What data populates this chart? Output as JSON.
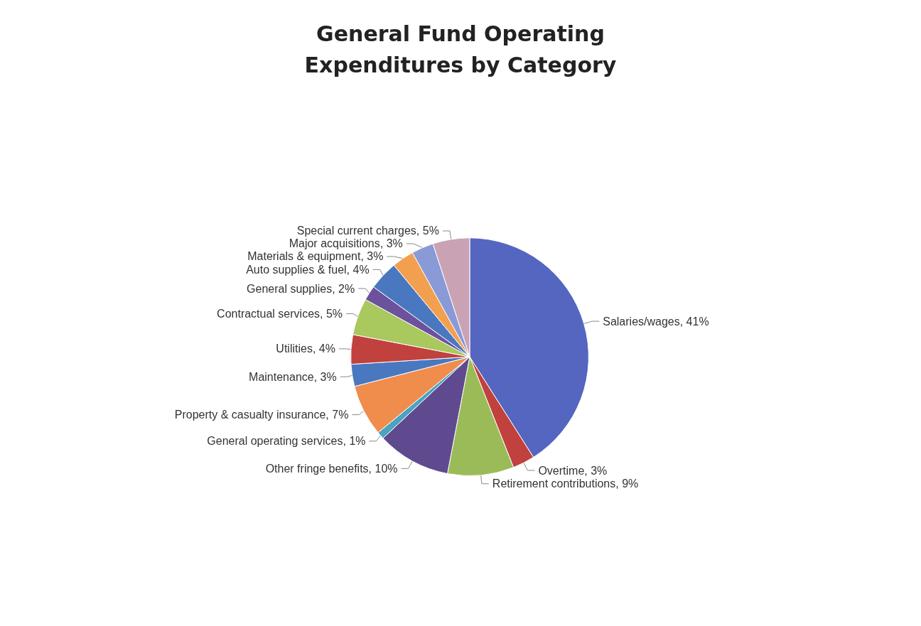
{
  "chart_data": {
    "type": "pie",
    "title": "General Fund Operating\nExpenditures by Category",
    "categories": [
      "Salaries/wages",
      "Overtime",
      "Retirement contributions",
      "Other fringe benefits",
      "General operating services",
      "Property & casualty insurance",
      "Maintenance",
      "Utilities",
      "Contractual services",
      "General supplies",
      "Auto supplies & fuel",
      "Materials & equipment",
      "Major acquisitions",
      "Special current charges"
    ],
    "values": [
      41,
      3,
      9,
      10,
      1,
      7,
      3,
      4,
      5,
      2,
      4,
      3,
      3,
      5
    ],
    "value_labels": [
      "41%",
      "3%",
      "9%",
      "10%",
      "1%",
      "7%",
      "3%",
      "4%",
      "5%",
      "2%",
      "4%",
      "3%",
      "3%",
      "5%"
    ],
    "colors": [
      "#5466c0",
      "#c0413e",
      "#9bbb59",
      "#5f4a8f",
      "#4aa3c0",
      "#f08c4c",
      "#4a78c0",
      "#c0413e",
      "#a9c85e",
      "#6c519c",
      "#4a78c0",
      "#f2a050",
      "#8a9ad6",
      "#c9a3b4"
    ],
    "legend": false
  }
}
